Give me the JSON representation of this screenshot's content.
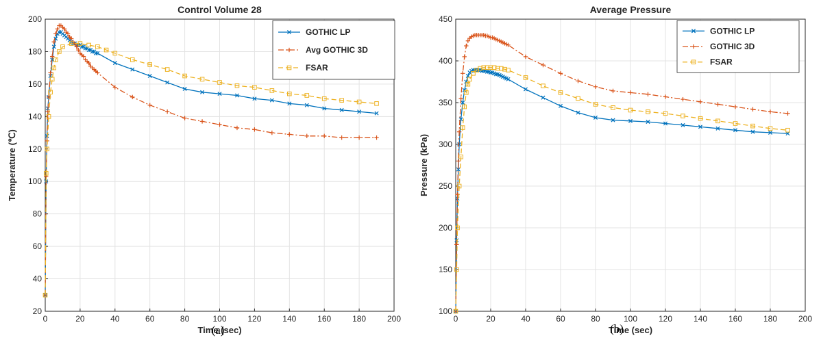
{
  "captions": [
    "(a)",
    "(b)"
  ],
  "chart_data": [
    {
      "type": "line",
      "title": "Control Volume 28",
      "xlabel": "Time (sec)",
      "ylabel": "Temperature (℃)",
      "xlim": [
        0,
        200
      ],
      "ylim": [
        20,
        200
      ],
      "xticks": [
        0,
        20,
        40,
        60,
        80,
        100,
        120,
        140,
        160,
        180,
        200
      ],
      "yticks": [
        20,
        40,
        60,
        80,
        100,
        120,
        140,
        160,
        180,
        200
      ],
      "grid": true,
      "legend": "top-right",
      "series": [
        {
          "name": "GOTHIC LP",
          "color": "#0072BD",
          "marker": "x",
          "linestyle": "solid",
          "x": [
            0,
            0.5,
            1,
            1.5,
            2,
            3,
            4,
            5,
            6,
            7,
            8,
            9,
            10,
            11,
            12,
            13,
            14,
            15,
            16,
            17,
            18,
            19,
            20,
            21,
            22,
            23,
            24,
            25,
            26,
            27,
            28,
            29,
            30,
            40,
            50,
            60,
            70,
            80,
            90,
            100,
            110,
            120,
            130,
            140,
            150,
            160,
            170,
            180,
            190
          ],
          "y": [
            30,
            100,
            128,
            145,
            152,
            165,
            175,
            183,
            188,
            191,
            192,
            192,
            191,
            190,
            189,
            188,
            187,
            186,
            185,
            185,
            184,
            184,
            184,
            183,
            183,
            182,
            182,
            181,
            181,
            180,
            180,
            179,
            179,
            173,
            169,
            165,
            161,
            157,
            155,
            154,
            153,
            151,
            150,
            148,
            147,
            145,
            144,
            143,
            142
          ]
        },
        {
          "name": "Avg GOTHIC 3D",
          "color": "#D95319",
          "marker": "+",
          "linestyle": "dashdot",
          "x": [
            0,
            0.5,
            1,
            1.5,
            2,
            3,
            4,
            5,
            6,
            7,
            8,
            9,
            10,
            11,
            12,
            13,
            14,
            15,
            16,
            17,
            18,
            19,
            20,
            21,
            22,
            23,
            24,
            25,
            26,
            27,
            28,
            29,
            30,
            40,
            50,
            60,
            70,
            80,
            90,
            100,
            110,
            120,
            130,
            140,
            150,
            160,
            170,
            180,
            190
          ],
          "y": [
            30,
            103,
            125,
            143,
            152,
            167,
            177,
            186,
            191,
            194,
            196,
            196,
            195,
            194,
            192,
            191,
            189,
            188,
            186,
            185,
            183,
            181,
            179,
            178,
            177,
            175,
            174,
            173,
            171,
            170,
            169,
            168,
            167,
            158,
            152,
            147,
            143,
            139,
            137,
            135,
            133,
            132,
            130,
            129,
            128,
            128,
            127,
            127,
            127
          ]
        },
        {
          "name": "FSAR",
          "color": "#EDB120",
          "marker": "square",
          "linestyle": "dashed",
          "x": [
            0,
            0.5,
            1,
            2,
            3,
            4,
            5,
            6,
            8,
            10,
            15,
            20,
            25,
            30,
            35,
            40,
            50,
            60,
            70,
            80,
            90,
            100,
            110,
            120,
            130,
            140,
            150,
            160,
            170,
            180,
            190
          ],
          "y": [
            30,
            105,
            120,
            140,
            155,
            163,
            170,
            175,
            180,
            183,
            185,
            185,
            184,
            183,
            181,
            179,
            175,
            172,
            169,
            165,
            163,
            161,
            159,
            158,
            156,
            154,
            153,
            151,
            150,
            149,
            148
          ]
        }
      ]
    },
    {
      "type": "line",
      "title": "Average Pressure",
      "xlabel": "Time (sec)",
      "ylabel": "Pressure (kPa)",
      "xlim": [
        0,
        200
      ],
      "ylim": [
        100,
        450
      ],
      "xticks": [
        0,
        20,
        40,
        60,
        80,
        100,
        120,
        140,
        160,
        180,
        200
      ],
      "yticks": [
        100,
        150,
        200,
        250,
        300,
        350,
        400,
        450
      ],
      "grid": true,
      "legend": "top-right",
      "series": [
        {
          "name": "GOTHIC LP",
          "color": "#0072BD",
          "marker": "x",
          "linestyle": "solid",
          "x": [
            0,
            0.5,
            1,
            1.5,
            2,
            3,
            4,
            5,
            6,
            7,
            8,
            9,
            10,
            11,
            12,
            13,
            14,
            15,
            16,
            17,
            18,
            19,
            20,
            21,
            22,
            23,
            24,
            25,
            26,
            27,
            28,
            29,
            30,
            40,
            50,
            60,
            70,
            80,
            90,
            100,
            110,
            120,
            130,
            140,
            150,
            160,
            170,
            180,
            190
          ],
          "y": [
            100,
            185,
            235,
            270,
            300,
            330,
            350,
            365,
            375,
            382,
            386,
            388,
            389,
            389,
            389,
            389,
            389,
            388,
            388,
            388,
            387,
            387,
            386,
            386,
            385,
            384,
            384,
            383,
            382,
            381,
            380,
            379,
            378,
            366,
            356,
            346,
            338,
            332,
            329,
            328,
            327,
            325,
            323,
            321,
            319,
            317,
            315,
            314,
            313
          ]
        },
        {
          "name": "GOTHIC 3D",
          "color": "#D95319",
          "marker": "+",
          "linestyle": "dashdot",
          "x": [
            0,
            0.5,
            1,
            1.5,
            2,
            3,
            4,
            5,
            6,
            7,
            8,
            9,
            10,
            11,
            12,
            13,
            14,
            15,
            16,
            17,
            18,
            19,
            20,
            21,
            22,
            23,
            24,
            25,
            26,
            27,
            28,
            29,
            30,
            40,
            50,
            60,
            70,
            80,
            90,
            100,
            110,
            120,
            130,
            140,
            150,
            160,
            170,
            180,
            190
          ],
          "y": [
            100,
            180,
            240,
            280,
            315,
            355,
            385,
            405,
            418,
            424,
            427,
            429,
            430,
            431,
            431,
            431,
            431,
            431,
            431,
            430,
            430,
            429,
            428,
            428,
            427,
            426,
            425,
            424,
            423,
            422,
            421,
            420,
            419,
            405,
            395,
            385,
            376,
            369,
            364,
            362,
            360,
            357,
            354,
            351,
            348,
            345,
            342,
            339,
            337
          ]
        },
        {
          "name": "FSAR",
          "color": "#EDB120",
          "marker": "square",
          "linestyle": "dashed",
          "x": [
            0,
            0.5,
            1,
            2,
            3,
            4,
            5,
            6,
            7,
            8,
            10,
            12,
            14,
            16,
            18,
            20,
            22,
            24,
            26,
            28,
            30,
            40,
            50,
            60,
            70,
            80,
            90,
            100,
            110,
            120,
            130,
            140,
            150,
            160,
            170,
            180,
            190
          ],
          "y": [
            100,
            150,
            200,
            250,
            285,
            320,
            345,
            362,
            372,
            378,
            385,
            389,
            391,
            392,
            392,
            392,
            392,
            391,
            391,
            390,
            389,
            380,
            370,
            362,
            355,
            348,
            344,
            341,
            339,
            337,
            334,
            331,
            328,
            325,
            322,
            319,
            317
          ]
        }
      ]
    }
  ]
}
